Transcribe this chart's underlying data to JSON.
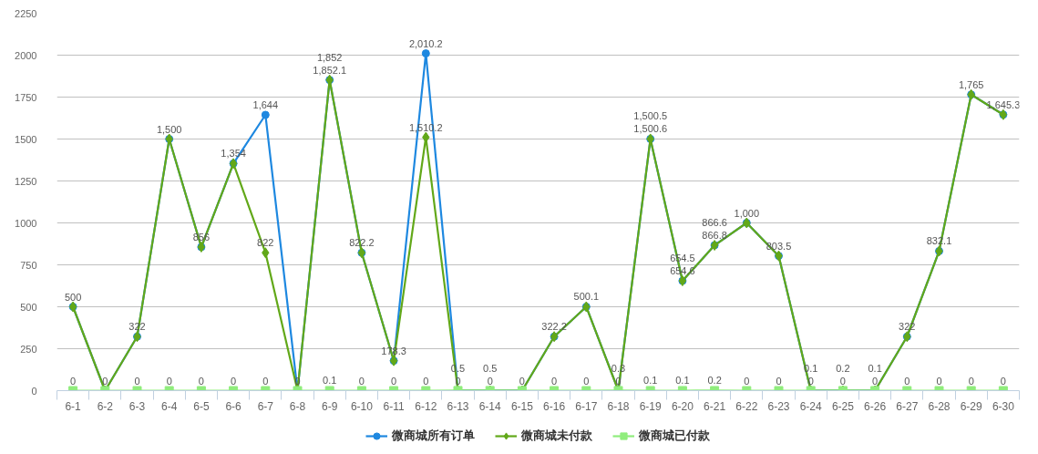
{
  "chart_data": {
    "type": "line",
    "categories": [
      "6-1",
      "6-2",
      "6-3",
      "6-4",
      "6-5",
      "6-6",
      "6-7",
      "6-8",
      "6-9",
      "6-10",
      "6-11",
      "6-12",
      "6-13",
      "6-14",
      "6-15",
      "6-16",
      "6-17",
      "6-18",
      "6-19",
      "6-20",
      "6-21",
      "6-22",
      "6-23",
      "6-24",
      "6-25",
      "6-26",
      "6-27",
      "6-28",
      "6-29",
      "6-30"
    ],
    "series": [
      {
        "name": "微商城所有订单",
        "color": "#1e88e0",
        "marker": "circle",
        "values": [
          500,
          0,
          322,
          1500,
          856,
          1354,
          1644,
          0,
          1852.1,
          822.2,
          178.3,
          2010.2,
          0.5,
          0.5,
          0,
          322.2,
          500.1,
          0.3,
          1500.6,
          654.6,
          866.8,
          1000,
          803.5,
          0.1,
          0.2,
          0.1,
          322,
          832.1,
          1765,
          1645.3
        ],
        "value_labels": [
          "500",
          null,
          "322",
          "1,500",
          "856",
          "1,354",
          "1,644",
          null,
          "1,852.1",
          "822.2",
          "178.3",
          "2,010.2",
          null,
          null,
          null,
          "322.2",
          "500.1",
          null,
          "1,500.6",
          "654.6",
          "866.8",
          "1,000",
          "803.5",
          null,
          null,
          null,
          "322",
          "832.1",
          "1,765",
          "1,645.3"
        ]
      },
      {
        "name": "微商城未付款",
        "color": "#62a819",
        "marker": "diamond",
        "values": [
          500,
          0,
          322,
          1500,
          856,
          1354,
          822,
          0,
          1852,
          822.2,
          178.3,
          1510.2,
          0,
          0,
          0,
          322.2,
          500.1,
          0,
          1500.5,
          654.5,
          866.6,
          1000,
          803.5,
          0,
          0,
          0,
          322,
          832.1,
          1765,
          1645.3
        ],
        "value_labels": [
          null,
          null,
          null,
          null,
          null,
          null,
          "822",
          null,
          "1,852",
          null,
          null,
          "1,510.2",
          "0",
          "0",
          null,
          null,
          null,
          "0",
          "1,500.5",
          "654.5",
          "866.6",
          null,
          null,
          "0",
          "0",
          "0",
          null,
          null,
          null,
          null
        ]
      },
      {
        "name": "微商城已付款",
        "color": "#90ed7d",
        "marker": "square",
        "values": [
          0,
          0,
          0,
          0,
          0,
          0,
          0,
          0,
          0.1,
          0,
          0,
          0,
          0.5,
          0.5,
          0,
          0,
          0,
          0.3,
          0.1,
          0.1,
          0.2,
          0,
          0,
          0.1,
          0.2,
          0.1,
          0,
          0,
          0,
          0
        ],
        "value_labels": [
          "0",
          "0",
          "0",
          "0",
          "0",
          "0",
          "0",
          "0",
          "0.1",
          "0",
          "0",
          "0",
          "0.5",
          "0.5",
          "0",
          "0",
          "0",
          "0.3",
          "0.1",
          "0.1",
          "0.2",
          "0",
          "0",
          "0.1",
          "0.2",
          "0.1",
          "0",
          "0",
          "0",
          "0"
        ]
      }
    ],
    "ylim": [
      0,
      2250
    ],
    "yticks": [
      0,
      250,
      500,
      750,
      1000,
      1250,
      1500,
      1750,
      2000,
      2250
    ],
    "grid": "y",
    "legend": "bottom"
  }
}
